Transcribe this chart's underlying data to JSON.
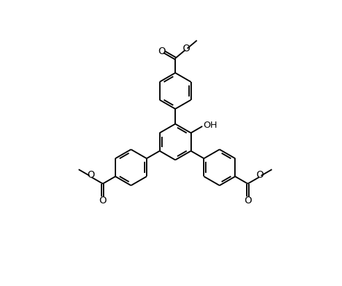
{
  "background": "#ffffff",
  "line_color": "#000000",
  "lw": 1.4,
  "figsize": [
    4.92,
    4.12
  ],
  "dpi": 100,
  "xlim": [
    -4.5,
    4.5
  ],
  "ylim": [
    -4.8,
    4.0
  ]
}
